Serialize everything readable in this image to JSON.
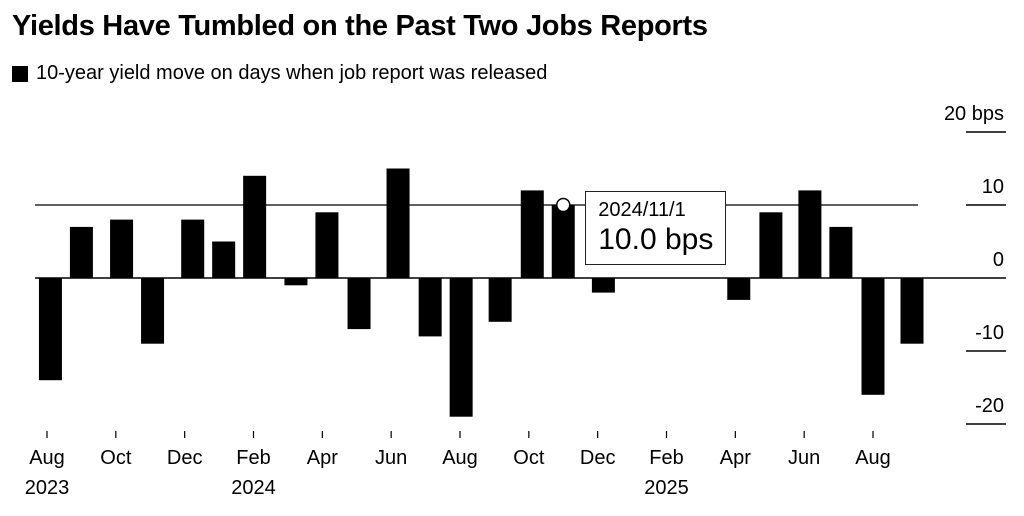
{
  "title": "Yields Have Tumbled on the Past Two Jobs Reports",
  "legend": {
    "label": "10-year yield move on days when job report was released",
    "color": "#000000"
  },
  "tooltip": {
    "date": "2024/11/1",
    "value": "10.0 bps"
  },
  "chart_data": {
    "type": "bar",
    "title": "Yields Have Tumbled on the Past Two Jobs Reports",
    "series": [
      {
        "name": "10-year yield move on days when job report was released",
        "color": "#000000",
        "points": [
          {
            "date": "2023-08-04",
            "value": -14
          },
          {
            "date": "2023-09-01",
            "value": 7
          },
          {
            "date": "2023-10-06",
            "value": 8
          },
          {
            "date": "2023-11-03",
            "value": -9
          },
          {
            "date": "2023-12-08",
            "value": 8
          },
          {
            "date": "2024-01-05",
            "value": 5
          },
          {
            "date": "2024-02-02",
            "value": 14
          },
          {
            "date": "2024-03-08",
            "value": -1
          },
          {
            "date": "2024-04-05",
            "value": 9
          },
          {
            "date": "2024-05-03",
            "value": -7
          },
          {
            "date": "2024-06-07",
            "value": 15
          },
          {
            "date": "2024-07-05",
            "value": -8
          },
          {
            "date": "2024-08-02",
            "value": -19
          },
          {
            "date": "2024-09-06",
            "value": -6
          },
          {
            "date": "2024-10-04",
            "value": 12
          },
          {
            "date": "2024-11-01",
            "value": 10
          },
          {
            "date": "2024-12-06",
            "value": -2
          },
          {
            "date": "2025-04-04",
            "value": -3
          },
          {
            "date": "2025-05-02",
            "value": 9
          },
          {
            "date": "2025-06-06",
            "value": 12
          },
          {
            "date": "2025-07-03",
            "value": 7
          },
          {
            "date": "2025-08-01",
            "value": -16
          },
          {
            "date": "2025-09-05",
            "value": -9
          }
        ]
      }
    ],
    "highlight": {
      "date": "2024-11-01",
      "value": 10
    },
    "reference_line": 10,
    "y_axis": {
      "range": [
        -20,
        20
      ],
      "ticks": [
        20,
        10,
        0,
        -10,
        -20
      ],
      "tick_labels": [
        "20 bps",
        "10",
        "0",
        "-10",
        "-20"
      ],
      "side": "right"
    },
    "x_axis": {
      "ticks": [
        {
          "date": "2023-08",
          "label": "Aug",
          "year": "2023"
        },
        {
          "date": "2023-10",
          "label": "Oct"
        },
        {
          "date": "2023-12",
          "label": "Dec"
        },
        {
          "date": "2024-02",
          "label": "Feb",
          "year": "2024"
        },
        {
          "date": "2024-04",
          "label": "Apr"
        },
        {
          "date": "2024-06",
          "label": "Jun"
        },
        {
          "date": "2024-08",
          "label": "Aug"
        },
        {
          "date": "2024-10",
          "label": "Oct"
        },
        {
          "date": "2024-12",
          "label": "Dec"
        },
        {
          "date": "2025-02",
          "label": "Feb",
          "year": "2025"
        },
        {
          "date": "2025-04",
          "label": "Apr"
        },
        {
          "date": "2025-06",
          "label": "Jun"
        },
        {
          "date": "2025-08",
          "label": "Aug"
        }
      ]
    },
    "grid": false
  }
}
